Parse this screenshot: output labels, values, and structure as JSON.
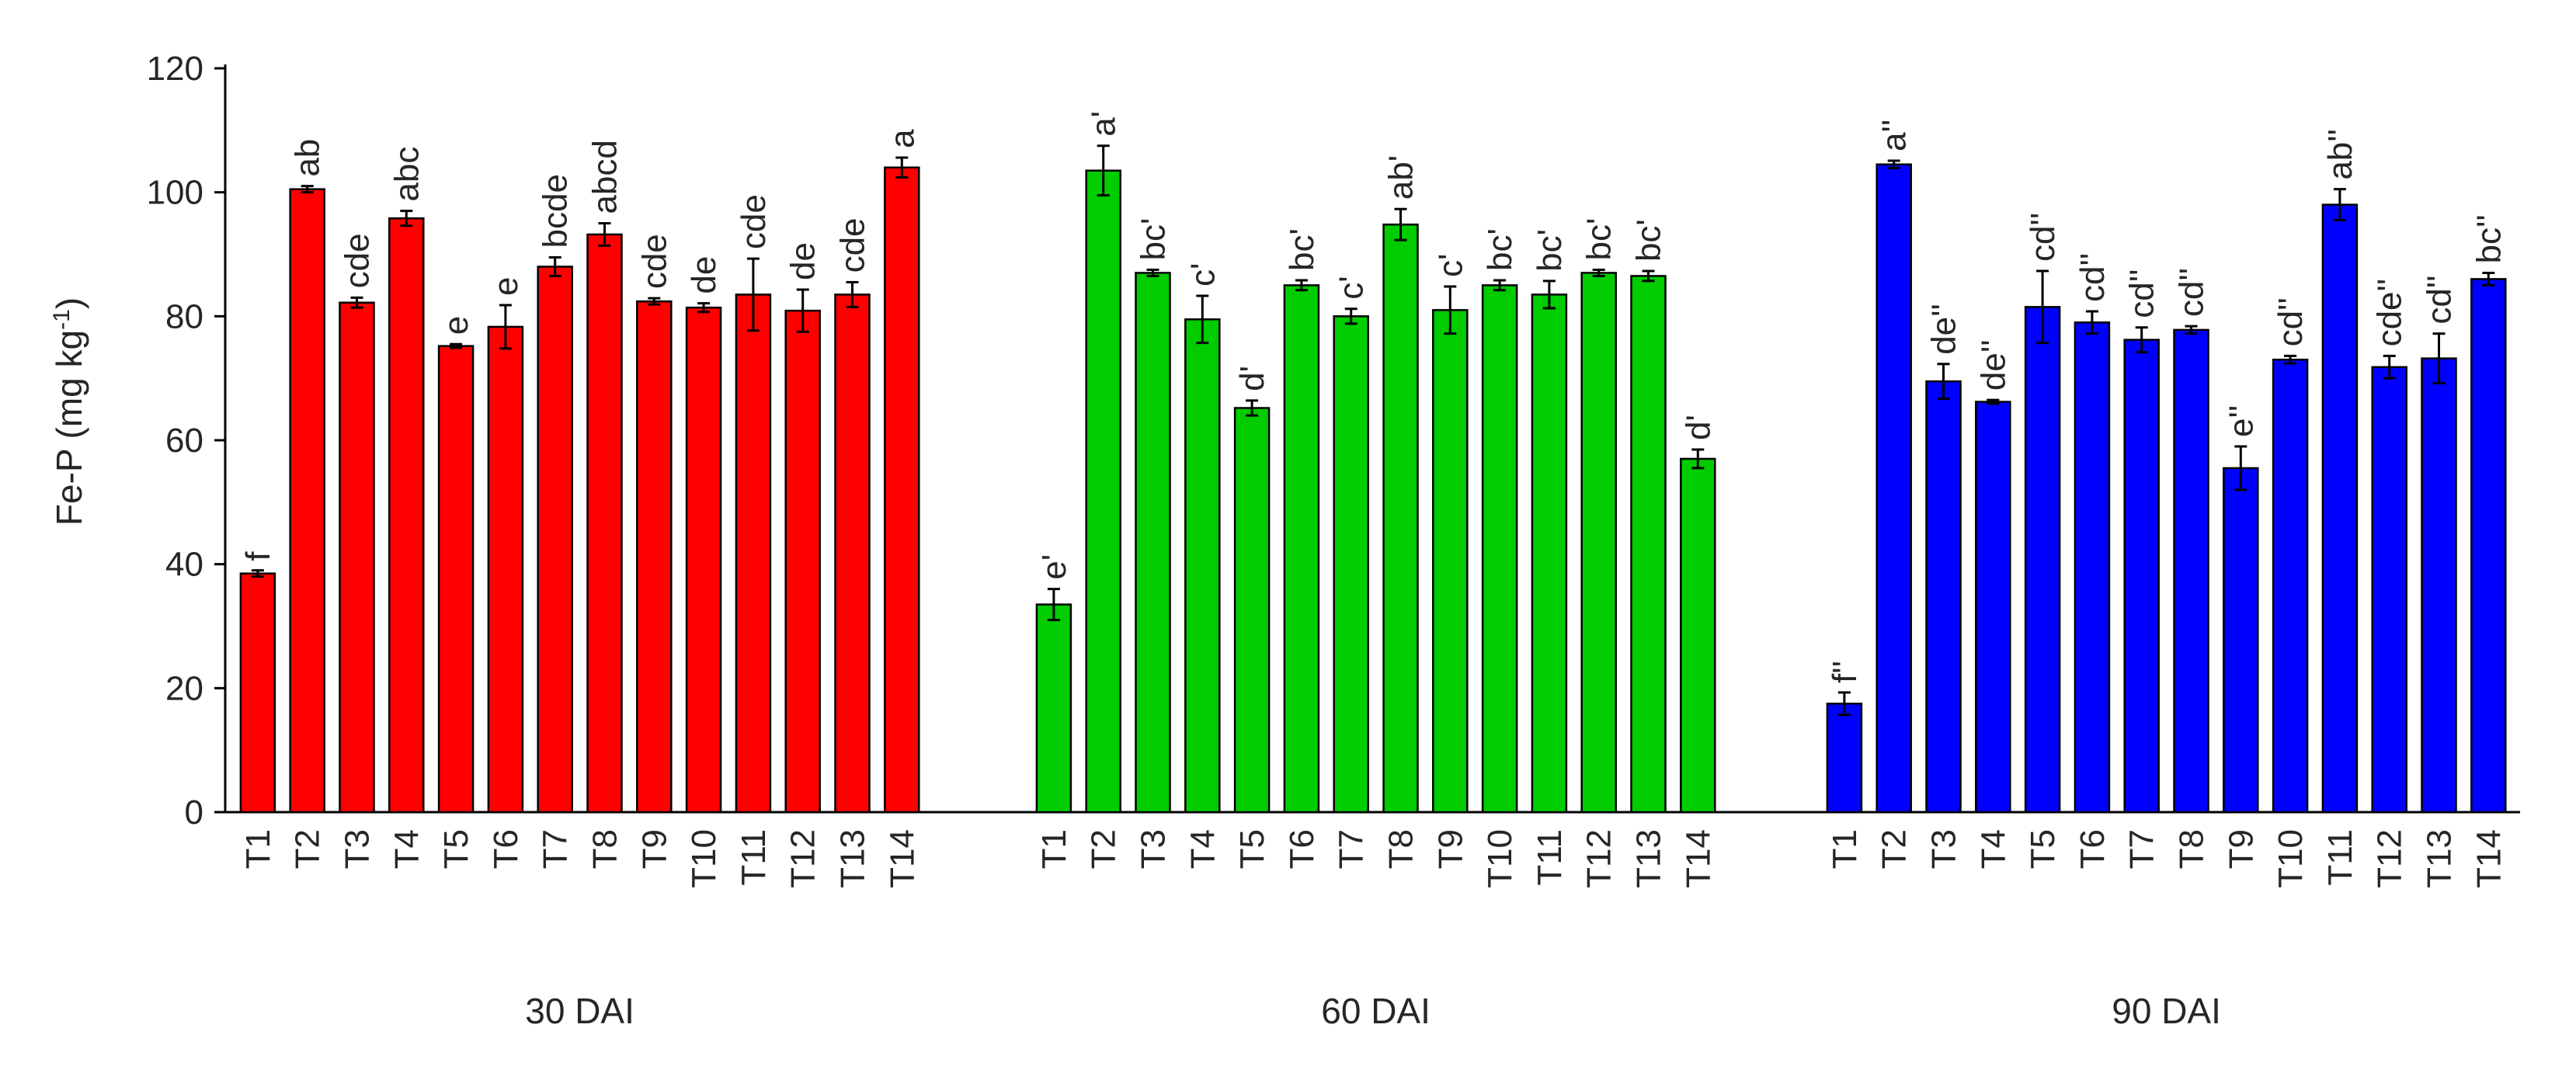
{
  "chart_data": {
    "type": "bar",
    "ylabel": "Fe-P (mg kg",
    "ylabel_superscript": "-1",
    "ylabel_close": ")",
    "ylim": [
      0,
      120
    ],
    "yticks": [
      0,
      20,
      40,
      60,
      80,
      100,
      120
    ],
    "grid": false,
    "legend": "none",
    "groups": [
      {
        "name": "30 DAI",
        "color": "#ff0000",
        "categories": [
          "T1",
          "T2",
          "T3",
          "T4",
          "T5",
          "T6",
          "T7",
          "T8",
          "T9",
          "T10",
          "T11",
          "T12",
          "T13",
          "T14"
        ],
        "values": [
          38.5,
          100.5,
          82.2,
          95.8,
          75.2,
          78.3,
          88.0,
          93.2,
          82.4,
          81.4,
          83.5,
          80.9,
          83.5,
          104.0
        ],
        "errors": [
          0.5,
          0.5,
          0.8,
          1.2,
          0.3,
          3.5,
          1.5,
          1.8,
          0.5,
          0.7,
          5.8,
          3.4,
          2.0,
          1.6
        ],
        "letters": [
          "f",
          "ab",
          "cde",
          "abc",
          "e",
          "e",
          "bcde",
          "abcd",
          "cde",
          "de",
          "cde",
          "de",
          "cde",
          "a"
        ]
      },
      {
        "name": "60 DAI",
        "color": "#00cc00",
        "categories": [
          "T1",
          "T2",
          "T3",
          "T4",
          "T5",
          "T6",
          "T7",
          "T8",
          "T9",
          "T10",
          "T11",
          "T12",
          "T13",
          "T14"
        ],
        "values": [
          33.5,
          103.5,
          87.0,
          79.5,
          65.2,
          85.0,
          80.0,
          94.8,
          81.0,
          85.0,
          83.5,
          87.0,
          86.5,
          57.0
        ],
        "errors": [
          2.5,
          4.0,
          0.5,
          3.8,
          1.2,
          0.8,
          1.2,
          2.5,
          3.8,
          0.8,
          2.2,
          0.5,
          0.8,
          1.5
        ],
        "letters": [
          "e'",
          "a'",
          "bc'",
          "c'",
          "d'",
          "bc'",
          "c'",
          "ab'",
          "c'",
          "bc'",
          "bc'",
          "bc'",
          "bc'",
          "d'"
        ]
      },
      {
        "name": "90 DAI",
        "color": "#0000ff",
        "categories": [
          "T1",
          "T2",
          "T3",
          "T4",
          "T5",
          "T6",
          "T7",
          "T8",
          "T9",
          "T10",
          "T11",
          "T12",
          "T13",
          "T14"
        ],
        "values": [
          17.5,
          104.5,
          69.5,
          66.2,
          81.5,
          79.0,
          76.2,
          77.8,
          55.5,
          73.0,
          98.0,
          71.8,
          73.2,
          86.0
        ],
        "errors": [
          1.8,
          0.6,
          2.8,
          0.3,
          5.8,
          1.8,
          2.0,
          0.6,
          3.5,
          0.6,
          2.5,
          1.8,
          4.0,
          1.0
        ],
        "letters": [
          "f''",
          "a''",
          "de''",
          "de''",
          "cd''",
          "cd''",
          "cd''",
          "cd''",
          "e''",
          "cd''",
          "ab''",
          "cde''",
          "cd''",
          "bc''"
        ]
      }
    ]
  }
}
